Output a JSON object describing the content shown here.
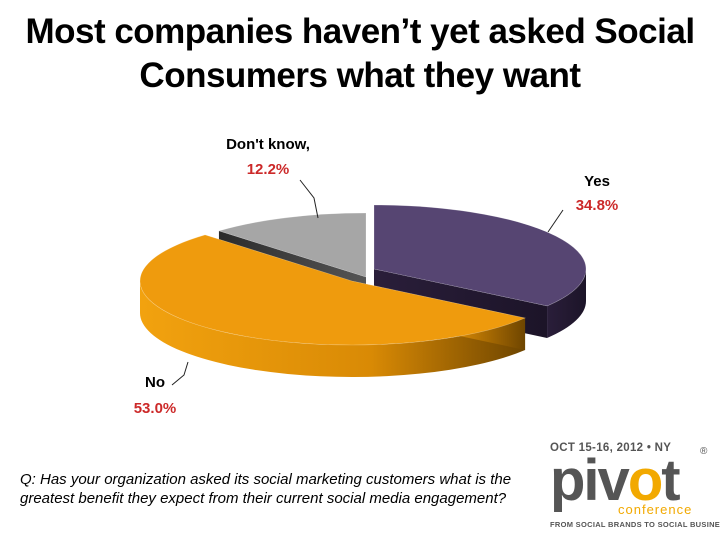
{
  "title": {
    "line1": "Most companies haven’t yet asked Social",
    "line2": "Consumers what they want"
  },
  "chart_data": {
    "type": "pie",
    "title": "Most companies haven’t yet asked Social Consumers what they want",
    "slices": [
      {
        "name": "Yes",
        "value": 34.8,
        "label": "34.8%",
        "color": "#564572",
        "exploded": true
      },
      {
        "name": "No",
        "value": 53.0,
        "label": "53.0%",
        "color": "#ef9b0d",
        "exploded": false
      },
      {
        "name": "Don't know,",
        "value": 12.2,
        "label": "12.2%",
        "color": "#a6a6a6",
        "exploded": false
      }
    ],
    "style": "3d-exploded-pie",
    "legend": "none"
  },
  "question": "Q: Has your organization asked its social marketing customers what is the greatest benefit they expect from their current social media engagement?",
  "logo": {
    "date_line": "OCT 15-16, 2012 • NY",
    "word_a": "piv",
    "word_o": "o",
    "word_b": "t",
    "registered": "®",
    "sub": "conference",
    "tagline": "FROM SOCIAL BRANDS TO SOCIAL BUSINESS"
  }
}
